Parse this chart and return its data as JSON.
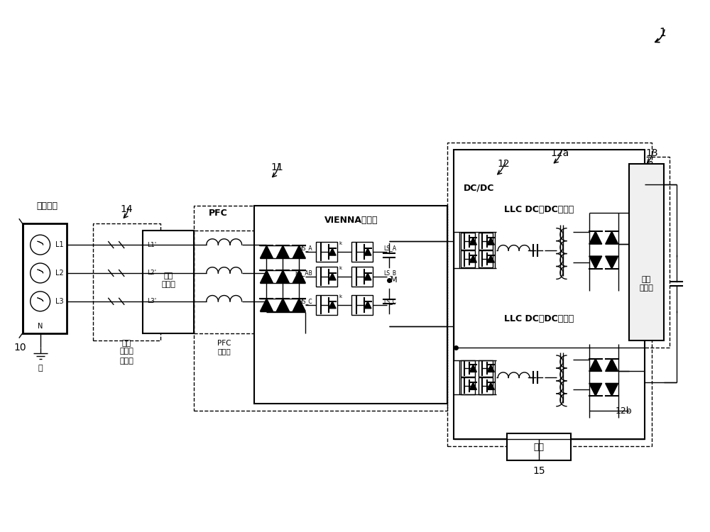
{
  "bg_color": "#ffffff",
  "lc": "#000000",
  "fig_w": 10.0,
  "fig_h": 7.5,
  "dpi": 100,
  "supply_net": "供电电网",
  "ground_lbl": "地",
  "pre_charge": "预充电",
  "inp_filt": "输入\n滤波器",
  "pfc_lbl": "PFC",
  "vienna_lbl": "VIENNA转换器",
  "pfc_ind": "PFC\n电感器",
  "dcdc_lbl": "DC/DC",
  "llc_top": "LLC DC到DC转换器",
  "llc_bot": "LLC DC到DC转换器",
  "out_filt": "输出\n滤波器",
  "control_lbl": "控制",
  "ref1": "1",
  "ref10": "10",
  "ref11": "11",
  "ref12": "12",
  "ref12a": "12a",
  "ref12b": "12b",
  "ref13": "13",
  "ref14": "14",
  "ref15": "15"
}
